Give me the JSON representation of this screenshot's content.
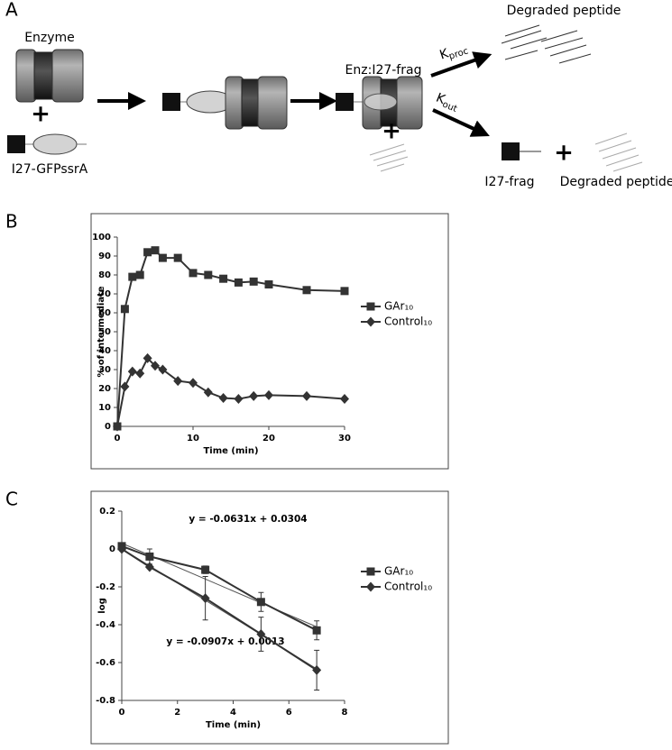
{
  "diagram": {
    "panel": "A",
    "enzyme": "Enzyme",
    "plus": "+",
    "substrate": "I27-GFPssrA",
    "complex": "Enz:I27-frag",
    "kproc": {
      "main": "K",
      "sub": "proc"
    },
    "kout": {
      "main": "K",
      "sub": "out"
    },
    "degraded_top": "Degraded peptide",
    "fragment": "I27-frag",
    "degraded_bottom": "Degraded peptide"
  },
  "chart_data": [
    {
      "type": "line",
      "panel": "B",
      "xlabel": "Time (min)",
      "ylabel": "% of intermediate",
      "x": [
        0,
        1,
        2,
        3,
        4,
        5,
        6,
        8,
        10,
        12,
        14,
        16,
        18,
        20,
        25,
        30
      ],
      "xlim": [
        0,
        30
      ],
      "xticks": [
        0,
        10,
        20,
        30
      ],
      "ylim": [
        0,
        100
      ],
      "yticks": [
        0,
        10,
        20,
        30,
        40,
        50,
        60,
        70,
        80,
        90,
        100
      ],
      "legend": "right",
      "series": [
        {
          "name": "GAr₁₀",
          "color": "#333333",
          "marker": "square",
          "values": [
            0,
            62,
            79,
            80,
            92,
            93,
            89,
            89,
            81,
            80,
            78,
            76,
            76.5,
            75,
            72,
            71.5
          ]
        },
        {
          "name": "Control₁₀",
          "color": "#333333",
          "marker": "diamond",
          "values": [
            0,
            21,
            29,
            28,
            36,
            32,
            30,
            24,
            23,
            18,
            15,
            14.5,
            16,
            16.5,
            16,
            14.5
          ]
        }
      ]
    },
    {
      "type": "line",
      "panel": "C",
      "xlabel": "Time (min)",
      "ylabel": "log",
      "x": [
        0,
        1,
        3,
        5,
        7
      ],
      "xlim": [
        0,
        8
      ],
      "xticks": [
        0,
        2,
        4,
        6,
        8
      ],
      "ylim": [
        -0.8,
        0.2
      ],
      "yticks": [
        0.2,
        0,
        -0.2,
        -0.4,
        -0.6,
        -0.8
      ],
      "legend": "right",
      "series": [
        {
          "name": "GAr₁₀",
          "color": "#333333",
          "marker": "square",
          "values": [
            0.015,
            -0.04,
            -0.11,
            -0.28,
            -0.43
          ],
          "errors": [
            0.01,
            0.04,
            0.02,
            0.05,
            0.05
          ]
        },
        {
          "name": "Control₁₀",
          "color": "#333333",
          "marker": "diamond",
          "values": [
            0,
            -0.095,
            -0.26,
            -0.45,
            -0.64
          ],
          "errors": [
            0.01,
            0.01,
            0.115,
            0.09,
            0.105
          ]
        }
      ],
      "trendlines": [
        {
          "slope": -0.0631,
          "intercept": 0.0304,
          "label": "y = -0.0631x + 0.0304"
        },
        {
          "slope": -0.0907,
          "intercept": 0.0013,
          "label": "y = -0.0907x + 0.0013"
        }
      ]
    }
  ]
}
